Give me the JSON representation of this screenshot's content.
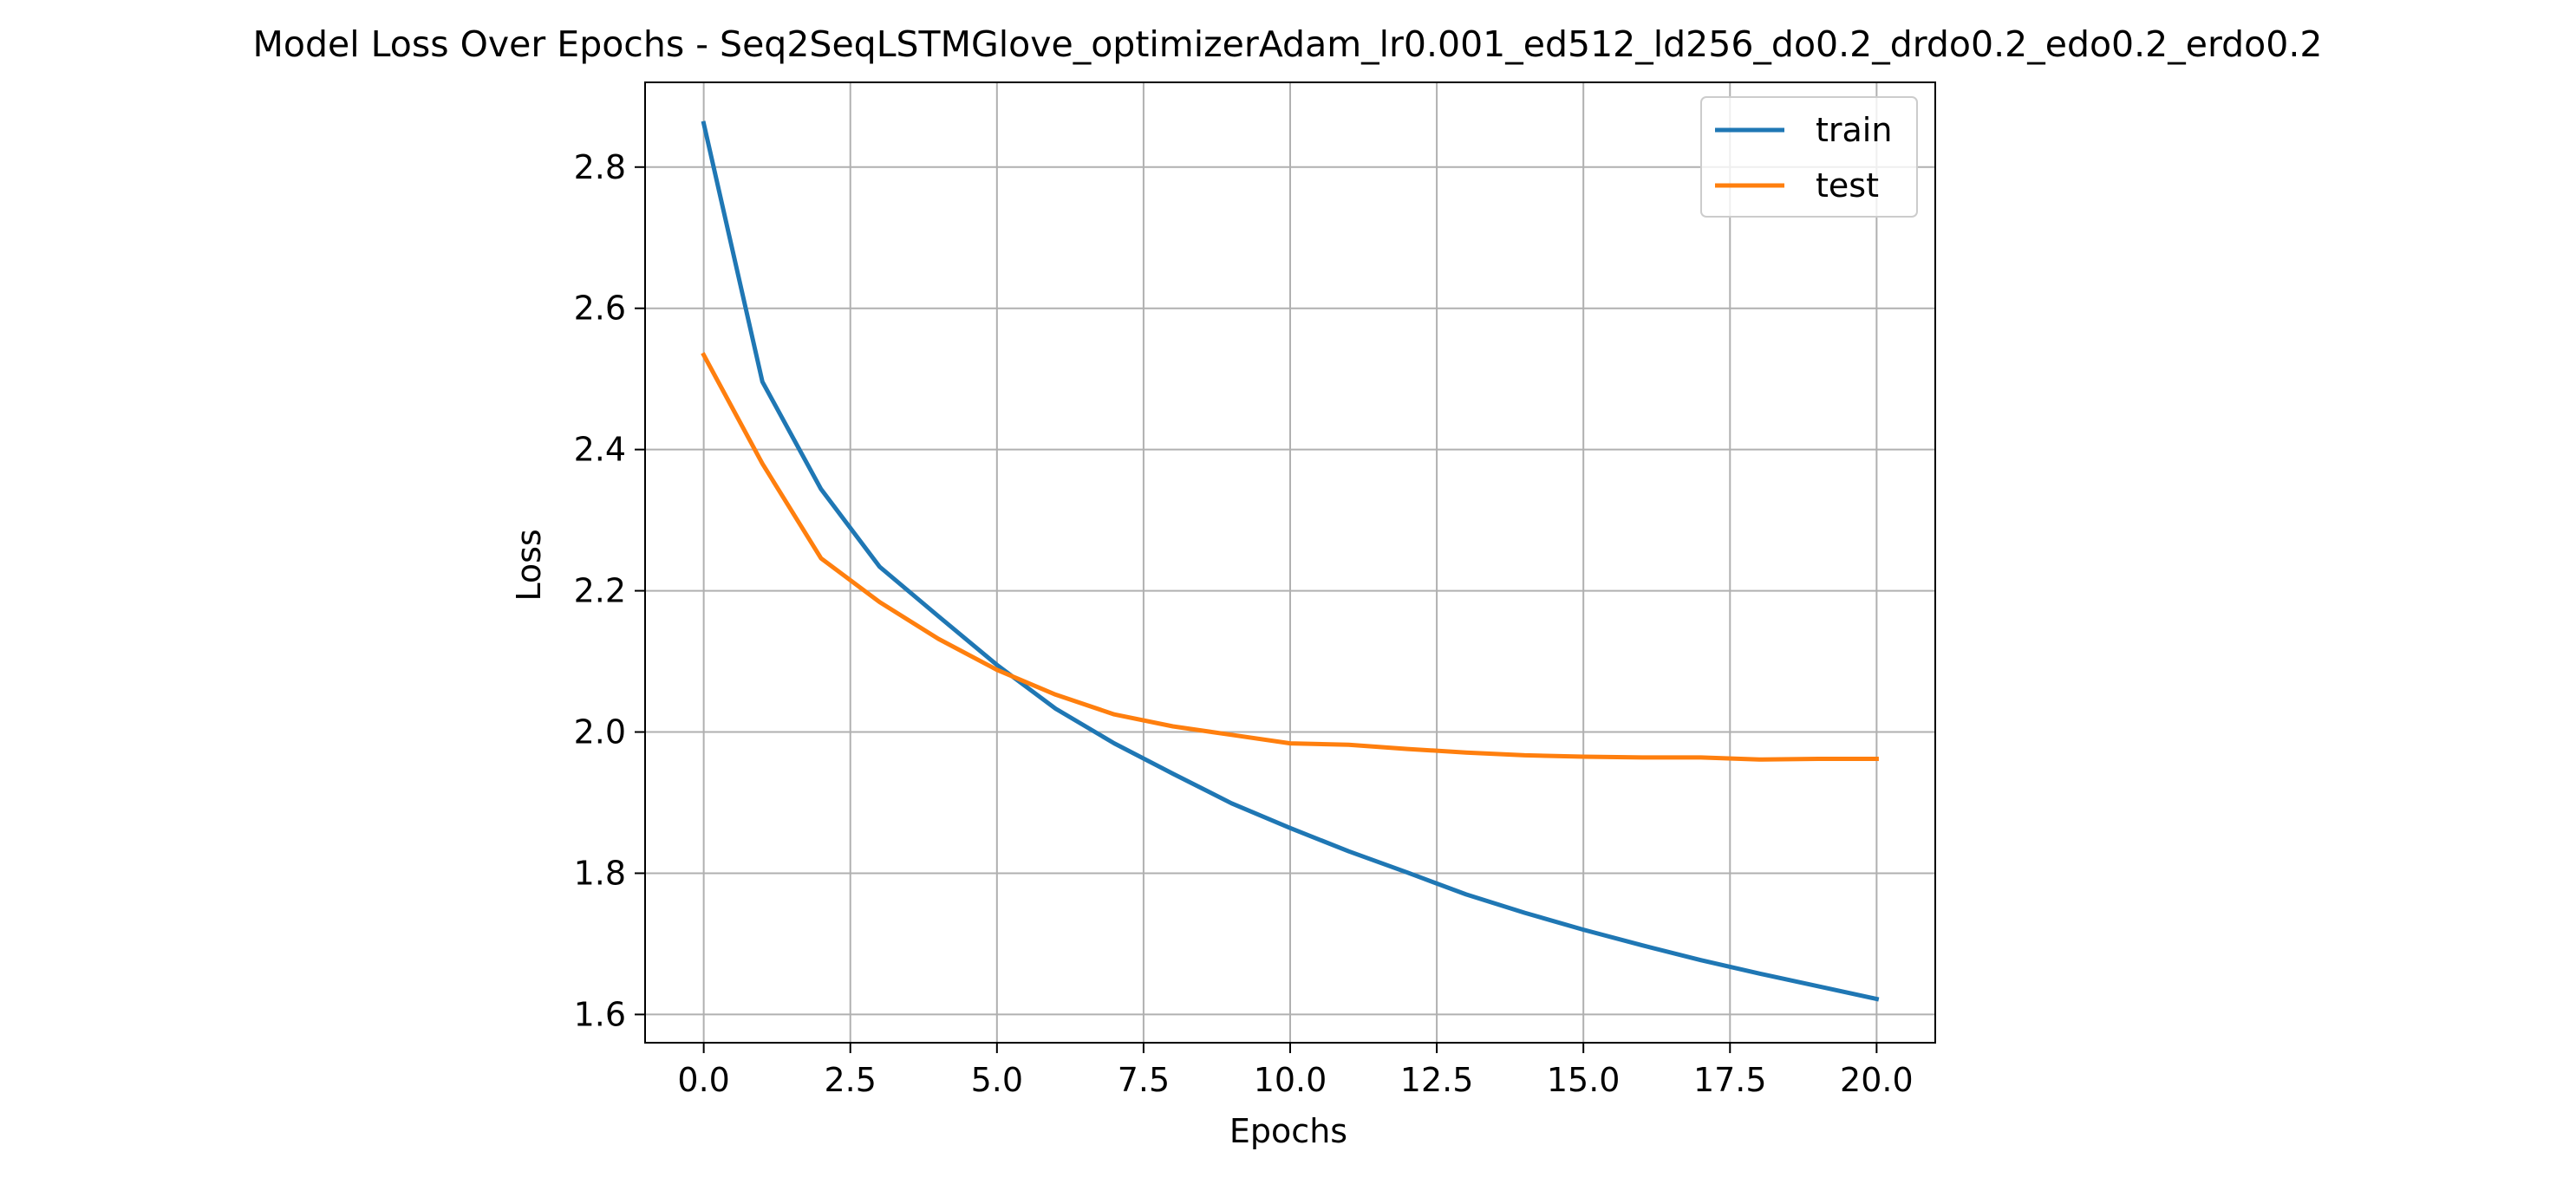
{
  "chart_data": {
    "type": "line",
    "title": "Model Loss Over Epochs - Seq2SeqLSTMGlove_optimizerAdam_lr0.001_ed512_ld256_do0.2_drdo0.2_edo0.2_erdo0.2",
    "xlabel": "Epochs",
    "ylabel": "Loss",
    "xlim": [
      -1,
      21
    ],
    "ylim": [
      1.56,
      2.92
    ],
    "xticks": [
      0.0,
      2.5,
      5.0,
      7.5,
      10.0,
      12.5,
      15.0,
      17.5,
      20.0
    ],
    "xtick_labels": [
      "0.0",
      "2.5",
      "5.0",
      "7.5",
      "10.0",
      "12.5",
      "15.0",
      "17.5",
      "20.0"
    ],
    "yticks": [
      1.6,
      1.8,
      2.0,
      2.2,
      2.4,
      2.6,
      2.8
    ],
    "ytick_labels": [
      "1.6",
      "1.8",
      "2.0",
      "2.2",
      "2.4",
      "2.6",
      "2.8"
    ],
    "grid": true,
    "legend_position": "top-right",
    "x": [
      0,
      1,
      2,
      3,
      4,
      5,
      6,
      7,
      8,
      9,
      10,
      11,
      12,
      13,
      14,
      15,
      16,
      17,
      18,
      19,
      20
    ],
    "series": [
      {
        "name": "train",
        "color": "#1f77b4",
        "values": [
          2.862,
          2.496,
          2.344,
          2.234,
          2.164,
          2.095,
          2.033,
          1.984,
          1.941,
          1.899,
          1.864,
          1.831,
          1.801,
          1.77,
          1.744,
          1.72,
          1.698,
          1.677,
          1.658,
          1.64,
          1.622
        ]
      },
      {
        "name": "test",
        "color": "#ff7f0e",
        "values": [
          2.534,
          2.38,
          2.246,
          2.184,
          2.132,
          2.088,
          2.053,
          2.025,
          2.008,
          1.996,
          1.984,
          1.982,
          1.976,
          1.971,
          1.967,
          1.965,
          1.964,
          1.964,
          1.961,
          1.962,
          1.962
        ]
      }
    ]
  }
}
